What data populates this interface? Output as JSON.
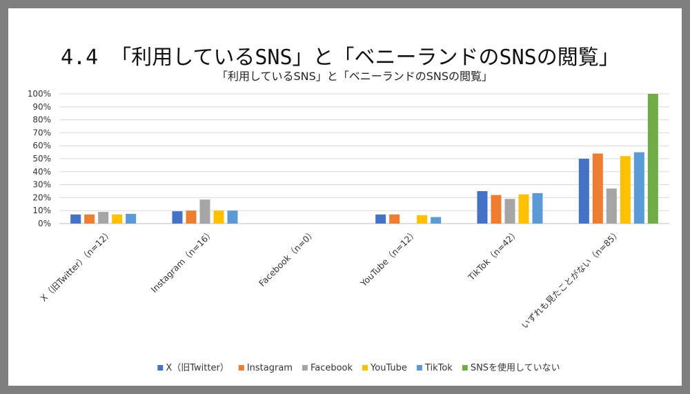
{
  "page": {
    "title": "4.4 「利用しているSNS」と「ベニーランドのSNSの閲覧」"
  },
  "chart_data": {
    "type": "bar",
    "title": "「利用しているSNS」と「ベニーランドのSNSの閲覧」",
    "categories": [
      "X（旧Twitter）（n=12）",
      "Instagram（n=16）",
      "Facebook（n=0）",
      "YouTube（n=12）",
      "TikTok（n=42）",
      "いずれも見たことがない（n=85）"
    ],
    "series": [
      {
        "name": "X（旧Twitter）",
        "color": "#4472C4",
        "values": [
          7,
          9.5,
          null,
          7,
          25,
          50
        ]
      },
      {
        "name": "Instagram",
        "color": "#ED7D31",
        "values": [
          7,
          10,
          null,
          7,
          22,
          54
        ]
      },
      {
        "name": "Facebook",
        "color": "#A5A5A5",
        "values": [
          9,
          18.5,
          null,
          0,
          19,
          27
        ]
      },
      {
        "name": "YouTube",
        "color": "#FFC000",
        "values": [
          7,
          10,
          null,
          6.5,
          22.5,
          52
        ]
      },
      {
        "name": "TikTok",
        "color": "#5B9BD5",
        "values": [
          7.5,
          10,
          null,
          5,
          23.5,
          55
        ]
      },
      {
        "name": "SNSを使用していない",
        "color": "#70AD47",
        "values": [
          0,
          0,
          null,
          0,
          0,
          100
        ]
      }
    ],
    "ylim": [
      0,
      100
    ],
    "yticks": [
      "0%",
      "10%",
      "20%",
      "30%",
      "40%",
      "50%",
      "60%",
      "70%",
      "80%",
      "90%",
      "100%"
    ],
    "grid": true,
    "legend": "bottom"
  }
}
